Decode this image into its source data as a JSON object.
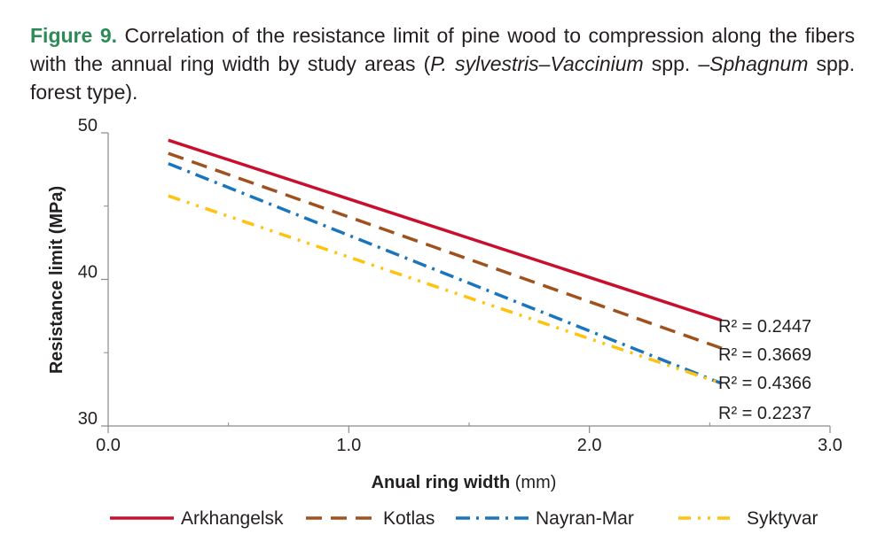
{
  "caption": {
    "label": "Figure 9.",
    "text_1": " Correlation of the resistance limit of pine wood to compression along the fibers with the annual ring width by study areas (",
    "italic_1": "P. sylvestris–Vaccinium",
    "text_2": " spp. –",
    "italic_2": "Sphagnum",
    "text_3": " spp. forest type).",
    "label_color": "#2e8b57"
  },
  "chart_data": {
    "type": "line",
    "xlabel_bold": "Anual ring width",
    "xlabel_unit": " (mm)",
    "ylabel": "Resistance limit (MPa)",
    "xlim": [
      0,
      3
    ],
    "ylim": [
      30,
      50
    ],
    "x_ticks": [
      0,
      1,
      2,
      3
    ],
    "x_tick_labels": [
      "0.0",
      "1.0",
      "2.0",
      "3.0"
    ],
    "y_ticks": [
      30,
      40,
      50
    ],
    "y_tick_labels": [
      "30",
      "40",
      "50"
    ],
    "y_minor_ticks": [
      35,
      45
    ],
    "x_minor_ticks": [
      0.5,
      1.5,
      2.5
    ],
    "grid": false,
    "legend_position": "bottom",
    "series": [
      {
        "name": "Arkhangelsk",
        "x": [
          0.25,
          2.55
        ],
        "y": [
          49.5,
          37.2
        ],
        "color": "#c8102e",
        "dash": "solid",
        "r2_text": "R² = 0.2447"
      },
      {
        "name": "Kotlas",
        "x": [
          0.25,
          2.55
        ],
        "y": [
          48.6,
          35.3
        ],
        "color": "#a0521e",
        "dash": "dash",
        "r2_text": "R² = 0.3669"
      },
      {
        "name": "Nayran-Mar",
        "x": [
          0.25,
          2.55
        ],
        "y": [
          47.9,
          32.9
        ],
        "color": "#1b75bc",
        "dash": "dashdot",
        "r2_text": "R² = 0.4366"
      },
      {
        "name": "Syktyvar",
        "x": [
          0.25,
          2.55
        ],
        "y": [
          45.7,
          32.9
        ],
        "color": "#ffc20e",
        "dash": "dashdotdot",
        "r2_text": "R² = 0.2237"
      }
    ]
  }
}
